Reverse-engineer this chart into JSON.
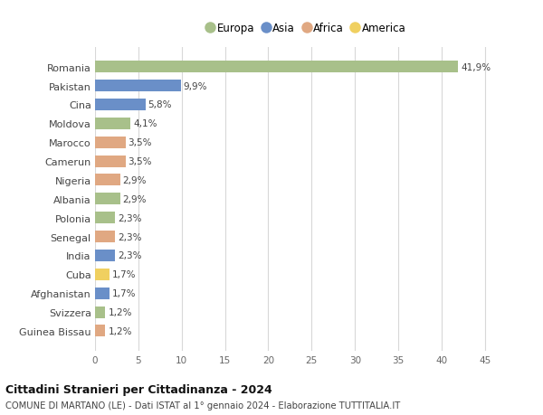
{
  "countries": [
    "Romania",
    "Pakistan",
    "Cina",
    "Moldova",
    "Marocco",
    "Camerun",
    "Nigeria",
    "Albania",
    "Polonia",
    "Senegal",
    "India",
    "Cuba",
    "Afghanistan",
    "Svizzera",
    "Guinea Bissau"
  ],
  "values": [
    41.9,
    9.9,
    5.8,
    4.1,
    3.5,
    3.5,
    2.9,
    2.9,
    2.3,
    2.3,
    2.3,
    1.7,
    1.7,
    1.2,
    1.2
  ],
  "continents": [
    "Europa",
    "Asia",
    "Asia",
    "Europa",
    "Africa",
    "Africa",
    "Africa",
    "Europa",
    "Europa",
    "Africa",
    "Asia",
    "America",
    "Asia",
    "Europa",
    "Africa"
  ],
  "colors": {
    "Europa": "#a8c08a",
    "Asia": "#6a8fc8",
    "Africa": "#e0a882",
    "America": "#f0d060"
  },
  "legend_order": [
    "Europa",
    "Asia",
    "Africa",
    "America"
  ],
  "title1": "Cittadini Stranieri per Cittadinanza - 2024",
  "title2": "COMUNE DI MARTANO (LE) - Dati ISTAT al 1° gennaio 2024 - Elaborazione TUTTITALIA.IT",
  "xlim": [
    0,
    47
  ],
  "xticks": [
    0,
    5,
    10,
    15,
    20,
    25,
    30,
    35,
    40,
    45
  ],
  "background_color": "#ffffff",
  "grid_color": "#d8d8d8"
}
